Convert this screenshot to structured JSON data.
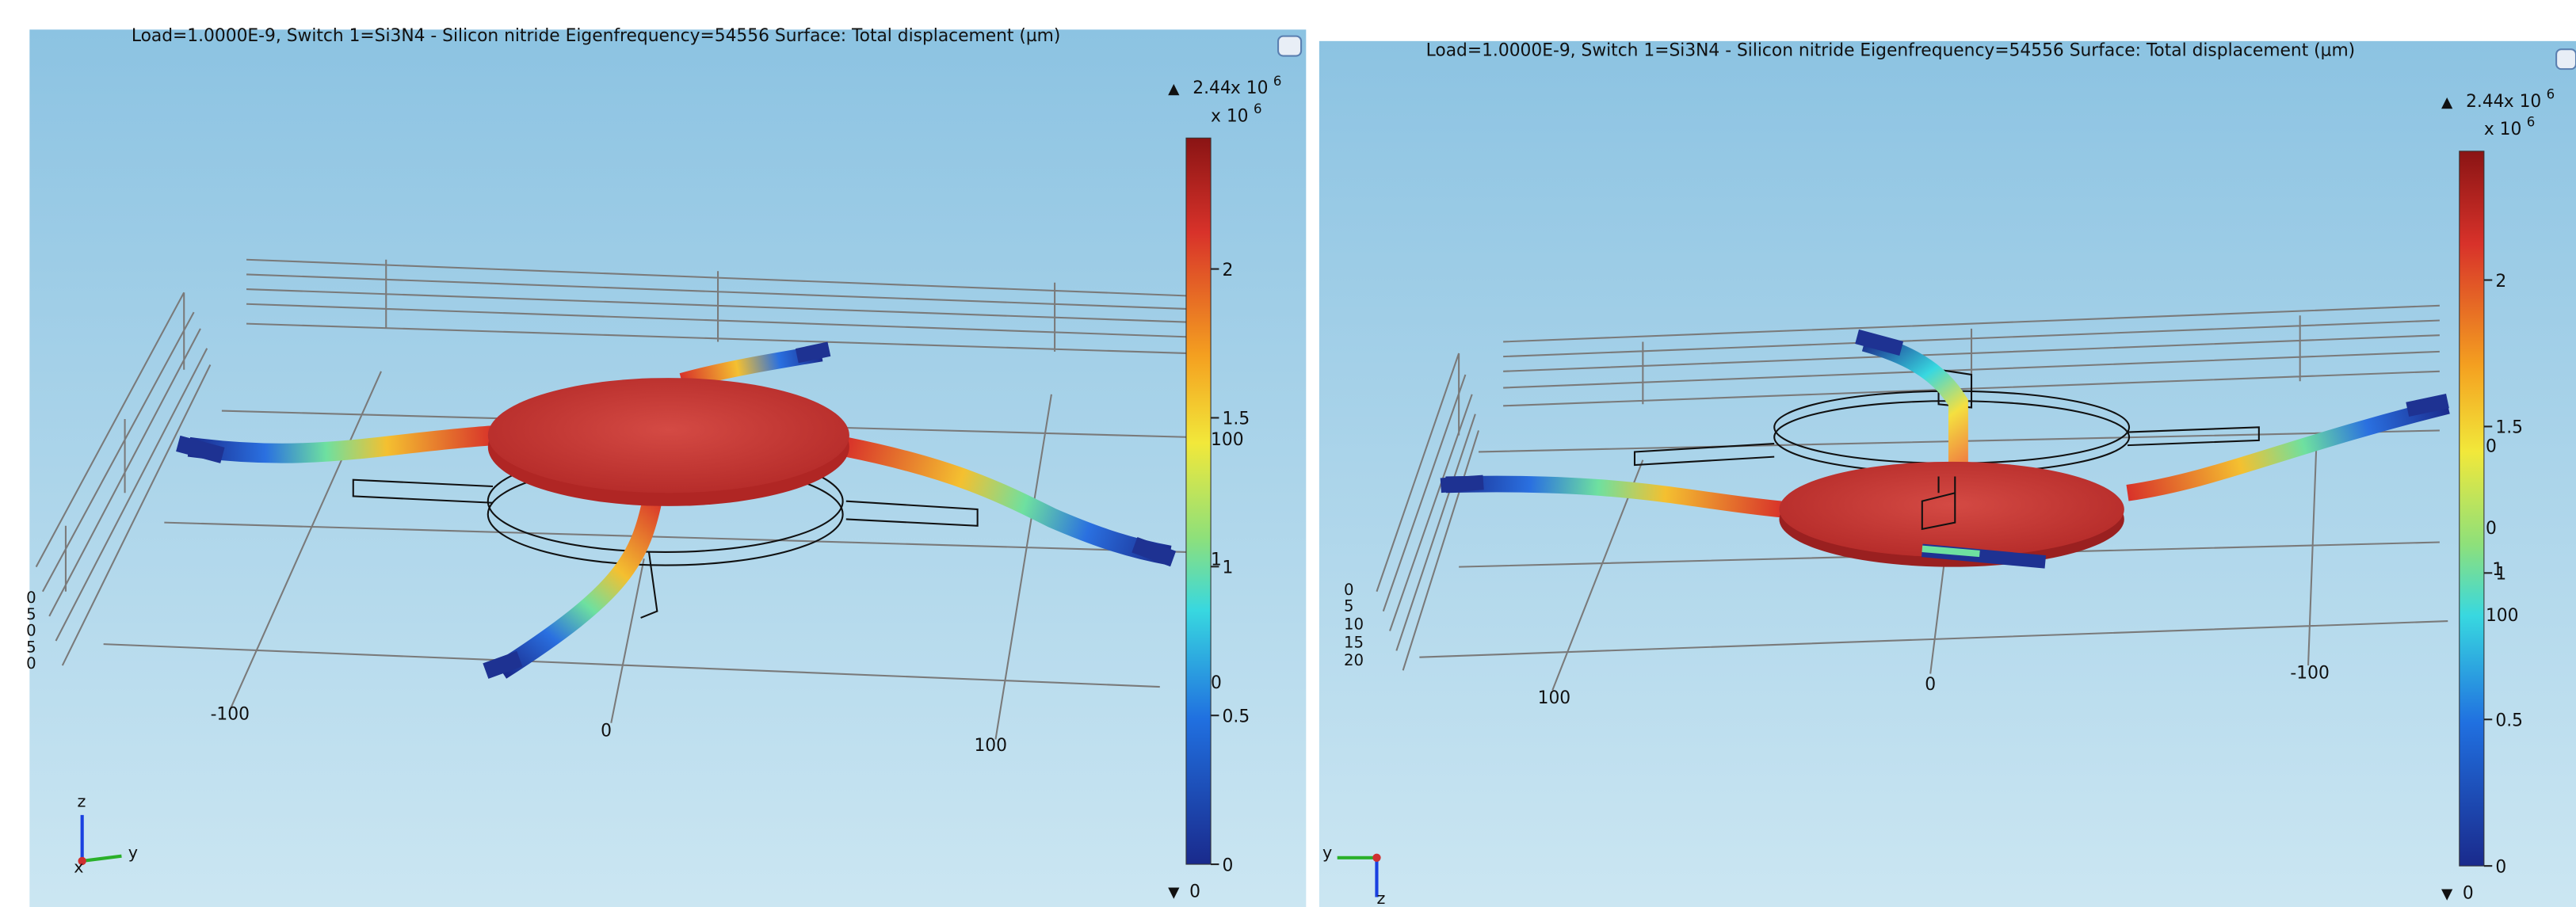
{
  "panels": [
    {
      "title": "Load=1.0000E-9, Switch 1=Si3N4 - Silicon nitride Eigenfrequency=54556   Surface: Total displacement (µm)",
      "colorbar": {
        "min": 0,
        "max": 2.44,
        "exponent_base": "x 10",
        "exponent": "6",
        "ticks": [
          0,
          0.5,
          1,
          1.5,
          2
        ]
      },
      "axis_labels": [
        "-100",
        "0",
        "100"
      ],
      "side_labels": [
        "0",
        "5",
        "0",
        "5",
        "0"
      ],
      "overlay_labels": [
        "100",
        "1",
        "0"
      ],
      "triad": [
        "z",
        "y",
        "x"
      ]
    },
    {
      "title": "Load=1.0000E-9, Switch 1=Si3N4 - Silicon nitride Eigenfrequency=54556   Surface: Total displacement (µm)",
      "colorbar": {
        "min": 0,
        "max": 2.44,
        "exponent_base": "x 10",
        "exponent": "6",
        "ticks": [
          0,
          0.5,
          1,
          1.5,
          2
        ]
      },
      "axis_labels": [
        "100",
        "0",
        "-100"
      ],
      "side_labels": [
        "0",
        "5",
        "10",
        "15",
        "20"
      ],
      "overlay_labels": [
        "0",
        "0",
        "1",
        "100"
      ],
      "triad": [
        "y",
        "z"
      ]
    }
  ]
}
